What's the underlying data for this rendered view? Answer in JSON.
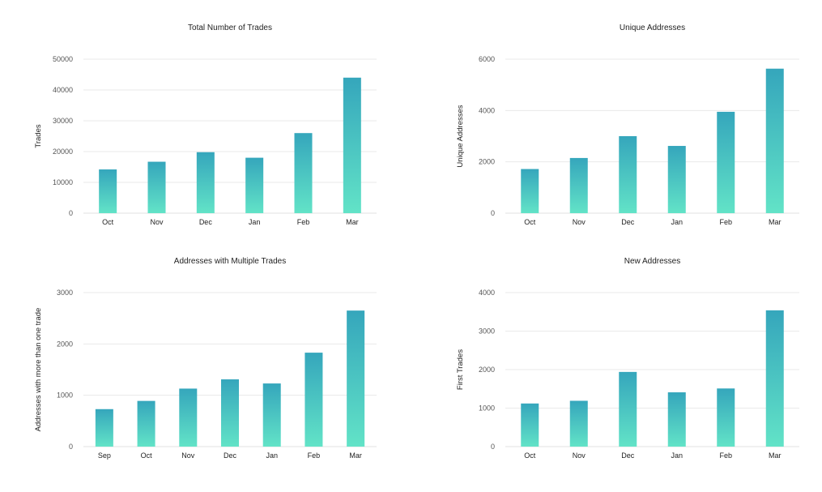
{
  "colors": {
    "bar_top": "#35a6bc",
    "bar_bottom": "#62e3c7",
    "grid": "#e9e9e9",
    "text": "#222222"
  },
  "chart_data": [
    {
      "type": "bar",
      "title": "Total Number of Trades",
      "xlabel": "",
      "ylabel": "Trades",
      "categories": [
        "Oct",
        "Nov",
        "Dec",
        "Jan",
        "Feb",
        "Mar"
      ],
      "values": [
        14200,
        16700,
        19800,
        18000,
        26000,
        44000
      ],
      "ylim": [
        0,
        50000
      ],
      "yticks": [
        0,
        10000,
        20000,
        30000,
        40000,
        50000
      ],
      "grid": true
    },
    {
      "type": "bar",
      "title": "Unique Addresses",
      "xlabel": "",
      "ylabel": "Unique Addresses",
      "categories": [
        "Oct",
        "Nov",
        "Dec",
        "Jan",
        "Feb",
        "Mar"
      ],
      "values": [
        1720,
        2150,
        3000,
        2620,
        3950,
        5630
      ],
      "ylim": [
        0,
        6000
      ],
      "yticks": [
        0,
        2000,
        4000,
        6000
      ],
      "grid": true
    },
    {
      "type": "bar",
      "title": "Addresses with Multiple Trades",
      "xlabel": "",
      "ylabel": "Addresses with more than one trade",
      "categories": [
        "Sep",
        "Oct",
        "Nov",
        "Dec",
        "Jan",
        "Feb",
        "Mar"
      ],
      "values": [
        730,
        890,
        1130,
        1310,
        1230,
        1830,
        2650
      ],
      "ylim": [
        0,
        3000
      ],
      "yticks": [
        0,
        1000,
        2000,
        3000
      ],
      "grid": true
    },
    {
      "type": "bar",
      "title": "New Addresses",
      "xlabel": "",
      "ylabel": "First Trades",
      "categories": [
        "Oct",
        "Nov",
        "Dec",
        "Jan",
        "Feb",
        "Mar"
      ],
      "values": [
        1120,
        1190,
        1940,
        1410,
        1510,
        3540
      ],
      "ylim": [
        0,
        4000
      ],
      "yticks": [
        0,
        1000,
        2000,
        3000,
        4000
      ],
      "grid": true
    }
  ]
}
